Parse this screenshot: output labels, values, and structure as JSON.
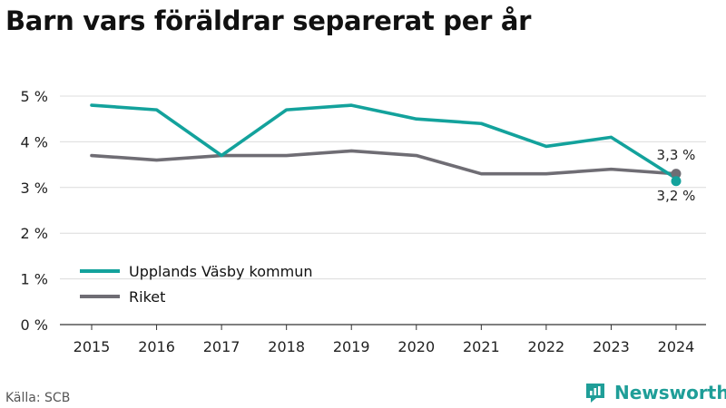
{
  "title": "Barn vars föräldrar separerat per år",
  "source": "Källa: SCB",
  "brand": {
    "name": "Newsworthy",
    "icon": "newsworthy-logo-icon",
    "color": "#1f9e98"
  },
  "chart_data": {
    "type": "line",
    "title": "Barn vars föräldrar separerat per år",
    "xlabel": "",
    "ylabel": "",
    "categories": [
      "2015",
      "2016",
      "2017",
      "2018",
      "2019",
      "2020",
      "2021",
      "2022",
      "2023",
      "2024"
    ],
    "series": [
      {
        "name": "Upplands Väsby kommun",
        "color": "#13a29c",
        "values": [
          4.8,
          4.7,
          3.7,
          4.7,
          4.8,
          4.5,
          4.4,
          3.9,
          4.1,
          3.2
        ],
        "last_label": "3,2 %"
      },
      {
        "name": "Riket",
        "color": "#6f6d74",
        "values": [
          3.7,
          3.6,
          3.7,
          3.7,
          3.8,
          3.7,
          3.3,
          3.3,
          3.4,
          3.3
        ],
        "last_label": "3,3 %"
      }
    ],
    "yticks": [
      {
        "value": 0,
        "label": "0 %"
      },
      {
        "value": 1,
        "label": "1 %"
      },
      {
        "value": 2,
        "label": "2 %"
      },
      {
        "value": 3,
        "label": "3 %"
      },
      {
        "value": 4,
        "label": "4 %"
      },
      {
        "value": 5,
        "label": "5 %"
      }
    ],
    "ylim": [
      0,
      5
    ],
    "grid": true,
    "legend_position": "lower-left"
  }
}
